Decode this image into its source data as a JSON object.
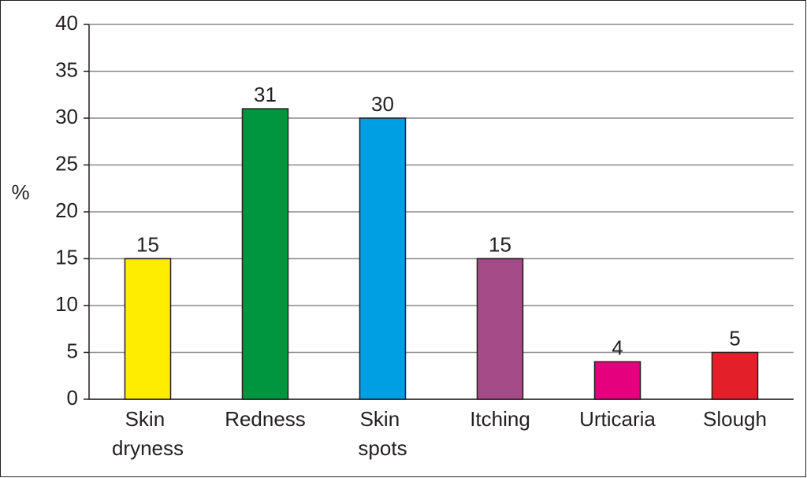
{
  "chart_data": {
    "type": "bar",
    "y_label": "%",
    "categories": [
      "Skin dryness",
      "Redness",
      "Skin spots",
      "Itching",
      "Urticaria",
      "Slough"
    ],
    "values": [
      15,
      31,
      30,
      15,
      4,
      5
    ],
    "colors": [
      "#ffed00",
      "#00963f",
      "#009fe3",
      "#a54b87",
      "#e5007e",
      "#e3202a"
    ],
    "ylim": [
      0,
      40
    ],
    "yticks": [
      0,
      5,
      10,
      15,
      20,
      25,
      30,
      35,
      40
    ],
    "grid": true
  }
}
